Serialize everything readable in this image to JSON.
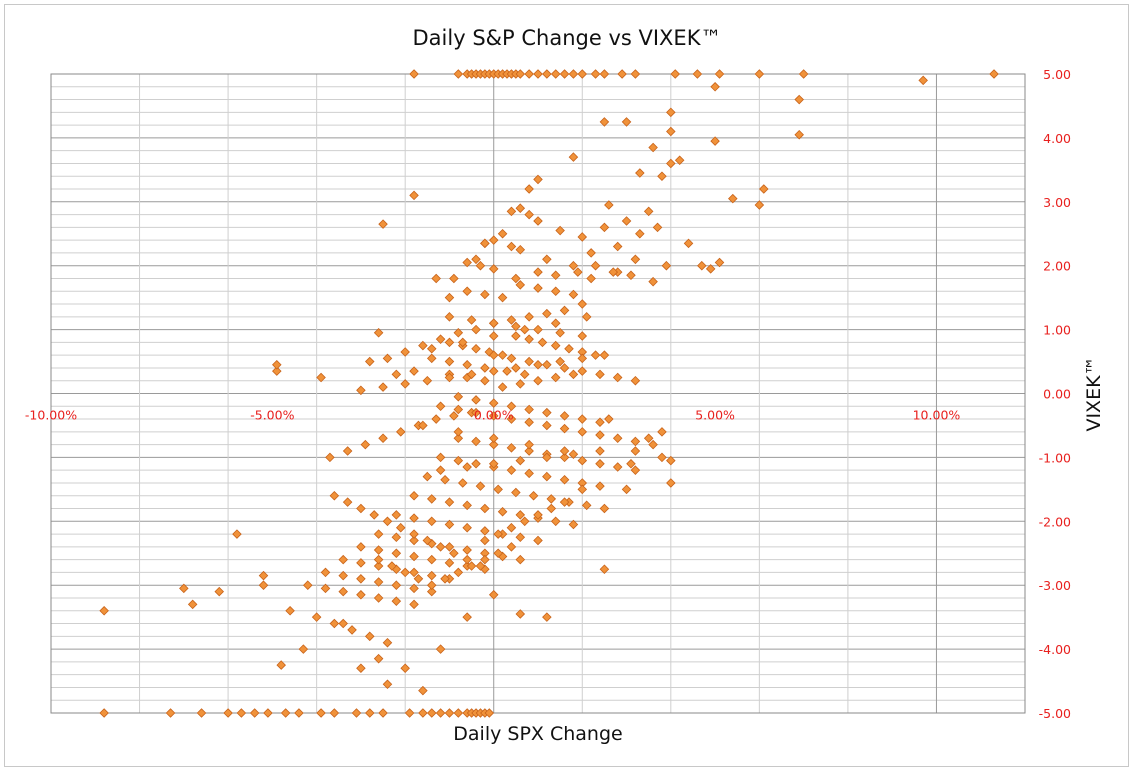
{
  "chart_data": {
    "type": "scatter",
    "title": "Daily S&P Change vs VIXEK™",
    "xlabel": "Daily SPX Change",
    "ylabel": "VIXEK™",
    "xlim": [
      -0.1,
      0.12
    ],
    "ylim": [
      -5,
      5
    ],
    "x_ticks": [
      -0.1,
      -0.05,
      0.0,
      0.05,
      0.1
    ],
    "x_tick_labels": [
      "-10.00%",
      "-5.00%",
      "0.00%",
      "5.00%",
      "10.00%"
    ],
    "y_ticks": [
      5,
      4,
      3,
      2,
      1,
      0,
      -1,
      -2,
      -3,
      -4,
      -5
    ],
    "y_tick_labels": [
      "5.00",
      "4.00",
      "3.00",
      "2.00",
      "1.00",
      "0.00",
      "-1.00",
      "-2.00",
      "-3.00",
      "-4.00",
      "-5.00"
    ],
    "grid": true,
    "legend": "none",
    "marker_color": "#f0923a",
    "marker_edge_color": "#c8631a",
    "tick_label_color": "#e8201e",
    "series": [
      {
        "x": [
          -0.018,
          -0.008,
          -0.006,
          -0.005,
          -0.004,
          -0.003,
          -0.002,
          -0.001,
          0.0,
          0.001,
          0.002,
          0.003,
          0.004,
          0.005,
          0.006,
          0.008,
          0.01,
          0.012,
          0.014,
          0.016,
          0.018,
          0.02,
          0.023,
          0.025,
          0.029,
          0.032,
          0.041,
          0.046,
          0.051,
          0.06,
          0.07,
          0.097,
          0.113,
          0.05,
          0.069,
          0.061,
          0.069,
          0.04,
          0.04,
          0.036,
          0.04,
          0.042,
          0.05,
          0.06,
          0.054,
          0.033,
          0.038,
          0.025,
          0.03,
          0.047,
          0.049,
          0.051,
          0.037,
          0.026,
          0.018,
          0.01,
          0.008,
          0.006,
          0.004,
          0.002,
          0.0,
          -0.002,
          -0.004,
          -0.006,
          -0.009,
          -0.013,
          -0.018,
          -0.025,
          0.008,
          0.01,
          0.015,
          0.02,
          0.025,
          0.03,
          0.035,
          0.004,
          -0.002,
          0.006,
          0.012,
          0.018,
          0.022,
          0.028,
          0.033,
          0.039,
          0.044,
          0.028,
          0.032,
          -0.003,
          0.0,
          0.005,
          0.01,
          0.014,
          0.019,
          0.023,
          0.027,
          0.031,
          0.036,
          0.022,
          -0.01,
          -0.006,
          -0.002,
          0.002,
          0.006,
          0.01,
          0.014,
          0.018,
          0.02,
          0.016,
          0.012,
          0.008,
          0.004,
          0.0,
          -0.004,
          -0.008,
          -0.012,
          -0.016,
          -0.02,
          -0.024,
          -0.028,
          -0.01,
          -0.007,
          -0.004,
          -0.001,
          0.002,
          0.005,
          0.008,
          0.011,
          0.014,
          0.017,
          0.02,
          0.023,
          0.007,
          0.003,
          -0.002,
          -0.006,
          -0.01,
          -0.014,
          -0.018,
          -0.022,
          0.018,
          0.014,
          0.01,
          0.006,
          0.002,
          -0.002,
          -0.006,
          -0.01,
          0.0,
          0.004,
          0.008,
          0.012,
          0.016,
          0.02,
          0.024,
          0.028,
          0.032,
          -0.005,
          -0.009,
          -0.013,
          -0.017,
          -0.021,
          -0.025,
          -0.029,
          -0.033,
          -0.037,
          -0.049,
          -0.049,
          -0.039,
          -0.026,
          -0.012,
          -0.008,
          -0.004,
          0.0,
          0.004,
          0.008,
          0.012,
          0.016,
          0.02,
          0.024,
          0.028,
          0.032,
          0.036,
          0.04,
          -0.008,
          -0.004,
          0.0,
          0.004,
          0.008,
          0.012,
          0.016,
          0.02,
          0.024,
          0.028,
          0.032,
          0.038,
          -0.012,
          -0.008,
          -0.004,
          0.0,
          0.004,
          0.008,
          0.012,
          0.016,
          0.02,
          0.024,
          -0.015,
          -0.011,
          -0.007,
          -0.003,
          0.001,
          0.005,
          0.009,
          0.013,
          0.017,
          0.021,
          0.025,
          -0.018,
          -0.014,
          -0.01,
          -0.006,
          -0.002,
          0.002,
          0.006,
          0.01,
          0.014,
          0.018,
          -0.022,
          -0.018,
          -0.014,
          -0.01,
          -0.006,
          -0.002,
          0.002,
          0.006,
          0.01,
          -0.026,
          -0.022,
          -0.018,
          -0.014,
          -0.01,
          -0.006,
          -0.002,
          0.002,
          0.006,
          -0.03,
          -0.026,
          -0.022,
          -0.018,
          -0.014,
          -0.01,
          -0.006,
          -0.002,
          -0.034,
          -0.03,
          -0.026,
          -0.022,
          -0.018,
          -0.014,
          -0.01,
          -0.038,
          -0.034,
          -0.03,
          -0.026,
          -0.022,
          -0.018,
          -0.014,
          -0.042,
          -0.038,
          -0.034,
          -0.03,
          -0.026,
          -0.022,
          -0.018,
          -0.046,
          -0.04,
          -0.036,
          -0.032,
          -0.028,
          -0.024,
          -0.058,
          -0.052,
          -0.052,
          -0.062,
          -0.07,
          -0.068,
          -0.088,
          -0.048,
          -0.043,
          -0.034,
          -0.03,
          -0.026,
          -0.024,
          -0.02,
          -0.016,
          -0.012,
          -0.006,
          0.0,
          0.006,
          0.012,
          0.025,
          0.03,
          0.04,
          0.031,
          0.038,
          0.035,
          0.026,
          0.032,
          0.02,
          -0.036,
          -0.033,
          -0.03,
          -0.027,
          -0.024,
          -0.021,
          -0.018,
          -0.015,
          -0.012,
          -0.009,
          -0.006,
          -0.003,
          -0.002,
          0.001,
          0.004,
          0.007,
          0.01,
          0.013,
          0.016,
          -0.026,
          -0.023,
          -0.02,
          -0.017,
          -0.014,
          -0.011,
          -0.008,
          -0.005,
          -0.002,
          0.001,
          0.004,
          -0.088,
          -0.073,
          -0.066,
          -0.06,
          -0.057,
          -0.054,
          -0.051,
          -0.047,
          -0.044,
          -0.039,
          -0.036,
          -0.031,
          -0.028,
          -0.025,
          -0.019,
          -0.016,
          -0.014,
          -0.012,
          -0.01,
          -0.008,
          -0.006,
          -0.005,
          -0.004,
          -0.003,
          -0.002,
          -0.001,
          -0.03,
          -0.025,
          -0.02,
          -0.015,
          -0.01,
          -0.005,
          0.0,
          0.005,
          0.01,
          0.015,
          0.02,
          0.025,
          -0.008,
          -0.004,
          0.0,
          0.004,
          0.008,
          0.012,
          0.016,
          0.02,
          0.024,
          -0.01,
          -0.005,
          0.0,
          0.005,
          0.01,
          0.015,
          0.02,
          -0.012,
          -0.006,
          0.0,
          0.006,
          0.012,
          0.018,
          0.024,
          -0.014,
          -0.007,
          0.0,
          0.007,
          0.014,
          0.021,
          -0.016,
          -0.008,
          0.0,
          0.008,
          0.016
        ],
        "y": [
          5,
          5,
          5,
          5,
          5,
          5,
          5,
          5,
          5,
          5,
          5,
          5,
          5,
          5,
          5,
          5,
          5,
          5,
          5,
          5,
          5,
          5,
          5,
          5,
          5,
          5,
          5,
          5,
          5,
          5,
          5,
          4.9,
          5,
          4.8,
          4.6,
          3.2,
          4.05,
          4.4,
          4.1,
          3.85,
          3.6,
          3.65,
          3.95,
          2.95,
          3.05,
          3.45,
          3.4,
          4.25,
          4.25,
          2.0,
          1.95,
          2.05,
          2.6,
          2.95,
          3.7,
          3.35,
          3.2,
          2.9,
          2.85,
          2.5,
          2.4,
          2.35,
          2.1,
          2.05,
          1.8,
          1.8,
          3.1,
          2.65,
          2.8,
          2.7,
          2.55,
          2.45,
          2.6,
          2.7,
          2.85,
          2.3,
          2.35,
          2.25,
          2.1,
          2.0,
          2.2,
          2.3,
          2.5,
          2.0,
          2.35,
          1.9,
          2.1,
          2.0,
          1.95,
          1.8,
          1.9,
          1.85,
          1.9,
          2.0,
          1.9,
          1.85,
          1.75,
          1.8,
          1.5,
          1.6,
          1.55,
          1.5,
          1.7,
          1.65,
          1.6,
          1.55,
          1.4,
          1.3,
          1.25,
          1.2,
          1.15,
          1.1,
          1.0,
          0.95,
          0.85,
          0.75,
          0.65,
          0.55,
          0.5,
          0.8,
          0.75,
          0.7,
          0.65,
          0.6,
          0.9,
          0.85,
          0.8,
          0.75,
          0.7,
          0.65,
          0.6,
          0.3,
          0.35,
          0.4,
          0.45,
          0.5,
          0.55,
          0.35,
          0.3,
          0.3,
          0.25,
          0.2,
          0.15,
          0.1,
          0.2,
          0.25,
          0.3,
          0.6,
          0.55,
          0.5,
          0.45,
          0.4,
          0.35,
          0.3,
          0.25,
          0.2,
          -0.3,
          -0.35,
          -0.4,
          -0.5,
          -0.6,
          -0.7,
          -0.8,
          -0.9,
          -1.0,
          0.35,
          0.45,
          0.25,
          0.95,
          -0.2,
          -0.25,
          -0.3,
          -0.35,
          -0.4,
          -0.45,
          -0.5,
          -0.55,
          -0.6,
          -0.65,
          -0.7,
          -0.75,
          -0.8,
          -1.05,
          -0.7,
          -0.75,
          -0.8,
          -0.85,
          -0.9,
          -0.95,
          -1.0,
          -1.05,
          -1.1,
          -1.15,
          -1.2,
          -1.0,
          -1.0,
          -1.05,
          -1.1,
          -1.15,
          -1.2,
          -1.25,
          -1.3,
          -1.35,
          -1.4,
          -1.45,
          -1.3,
          -1.35,
          -1.4,
          -1.45,
          -1.5,
          -1.55,
          -1.6,
          -1.65,
          -1.7,
          -1.75,
          -1.8,
          -1.6,
          -1.65,
          -1.7,
          -1.75,
          -1.8,
          -1.85,
          -1.9,
          -1.95,
          -2.0,
          -2.05,
          -1.9,
          -1.95,
          -2.0,
          -2.05,
          -2.1,
          -2.15,
          -2.2,
          -2.25,
          -2.3,
          -2.2,
          -2.25,
          -2.3,
          -2.35,
          -2.4,
          -2.45,
          -2.5,
          -2.55,
          -2.6,
          -2.4,
          -2.45,
          -2.5,
          -2.55,
          -2.6,
          -2.65,
          -2.7,
          -2.75,
          -2.6,
          -2.65,
          -2.7,
          -2.75,
          -2.8,
          -2.85,
          -2.9,
          -2.8,
          -2.85,
          -2.9,
          -2.95,
          -3.0,
          -3.05,
          -3.1,
          -3.0,
          -3.05,
          -3.1,
          -3.15,
          -3.2,
          -3.25,
          -3.3,
          -3.4,
          -3.5,
          -3.6,
          -3.7,
          -3.8,
          -3.9,
          -2.2,
          -2.85,
          -3.0,
          -3.1,
          -3.05,
          -3.3,
          -3.4,
          -4.25,
          -4.0,
          -3.6,
          -4.3,
          -4.15,
          -4.55,
          -4.3,
          -4.65,
          -4.0,
          -3.5,
          -3.15,
          -3.45,
          -3.5,
          -2.75,
          -1.5,
          -1.4,
          -1.1,
          -0.6,
          -0.7,
          -0.4,
          -0.9,
          -1.5,
          -1.6,
          -1.7,
          -1.8,
          -1.9,
          -2.0,
          -2.1,
          -2.2,
          -2.3,
          -2.4,
          -2.5,
          -2.6,
          -2.7,
          -2.3,
          -2.2,
          -2.1,
          -2.0,
          -1.9,
          -1.8,
          -1.7,
          -2.6,
          -2.7,
          -2.8,
          -2.9,
          -3.0,
          -2.9,
          -2.8,
          -2.7,
          -2.6,
          -2.5,
          -2.4,
          -5,
          -5,
          -5,
          -5,
          -5,
          -5,
          -5,
          -5,
          -5,
          -5,
          -5,
          -5,
          -5,
          -5,
          -5,
          -5,
          -5,
          -5,
          -5,
          -5,
          -5,
          -5,
          -5,
          -5,
          -5,
          -5,
          0.05,
          0.1,
          0.15,
          0.2,
          0.25,
          0.3,
          0.35,
          0.4,
          0.45,
          0.5,
          0.55,
          0.6,
          -0.05,
          -0.1,
          -0.15,
          -0.2,
          -0.25,
          -0.3,
          -0.35,
          -0.4,
          -0.45,
          1.2,
          1.15,
          1.1,
          1.05,
          1.0,
          0.95,
          0.9,
          -1.2,
          -1.15,
          -1.1,
          -1.05,
          -1.0,
          -0.95,
          -0.9,
          0.7,
          0.8,
          0.9,
          1.0,
          1.1,
          1.2,
          -0.5,
          -0.6,
          -0.7,
          -0.8,
          -0.9
        ]
      }
    ]
  }
}
